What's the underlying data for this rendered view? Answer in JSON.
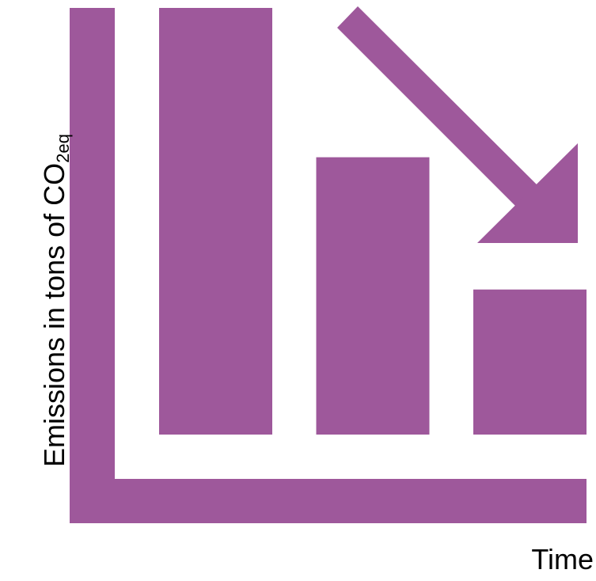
{
  "colors": {
    "mark": "#9e589b",
    "background": "#ffffff",
    "text": "#000000"
  },
  "chart_data": {
    "type": "bar",
    "title": "",
    "xlabel": "Time",
    "ylabel": "Emissions in tons of CO",
    "ylabel_subscript": "2eq",
    "categories": [
      "",
      "",
      ""
    ],
    "values": [
      100,
      65,
      34
    ],
    "ylim": [
      0,
      100
    ],
    "grid": false,
    "annotations": [
      {
        "type": "arrow",
        "meaning": "decreasing-trend"
      }
    ]
  }
}
